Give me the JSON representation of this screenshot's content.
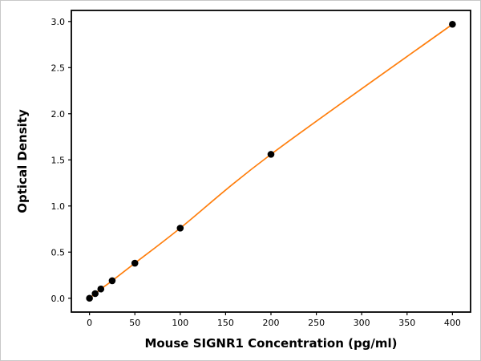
{
  "chart_data": {
    "type": "scatter",
    "title": "",
    "xlabel": "Mouse SIGNR1 Concentration (pg/ml)",
    "ylabel": "Optical Density",
    "series": [
      {
        "name": "standard-curve",
        "x": [
          0,
          6.25,
          12.5,
          25,
          50,
          100,
          200,
          400
        ],
        "y": [
          0.0,
          0.05,
          0.1,
          0.19,
          0.38,
          0.76,
          1.56,
          2.97
        ]
      }
    ],
    "x_ticks": [
      0,
      50,
      100,
      150,
      200,
      250,
      300,
      350,
      400
    ],
    "x_tick_labels": [
      "0",
      "50",
      "100",
      "150",
      "200",
      "250",
      "300",
      "350",
      "400"
    ],
    "y_ticks": [
      0.0,
      0.5,
      1.0,
      1.5,
      2.0,
      2.5,
      3.0
    ],
    "y_tick_labels": [
      "0.0",
      "0.5",
      "1.0",
      "1.5",
      "2.0",
      "2.5",
      "3.0"
    ],
    "xlim": [
      -20,
      420
    ],
    "ylim": [
      -0.15,
      3.12
    ],
    "grid": false,
    "legend": "none",
    "colors": {
      "line": "#ff7f0e",
      "points": "#000000",
      "spine": "#000000",
      "background": "#ffffff"
    }
  }
}
